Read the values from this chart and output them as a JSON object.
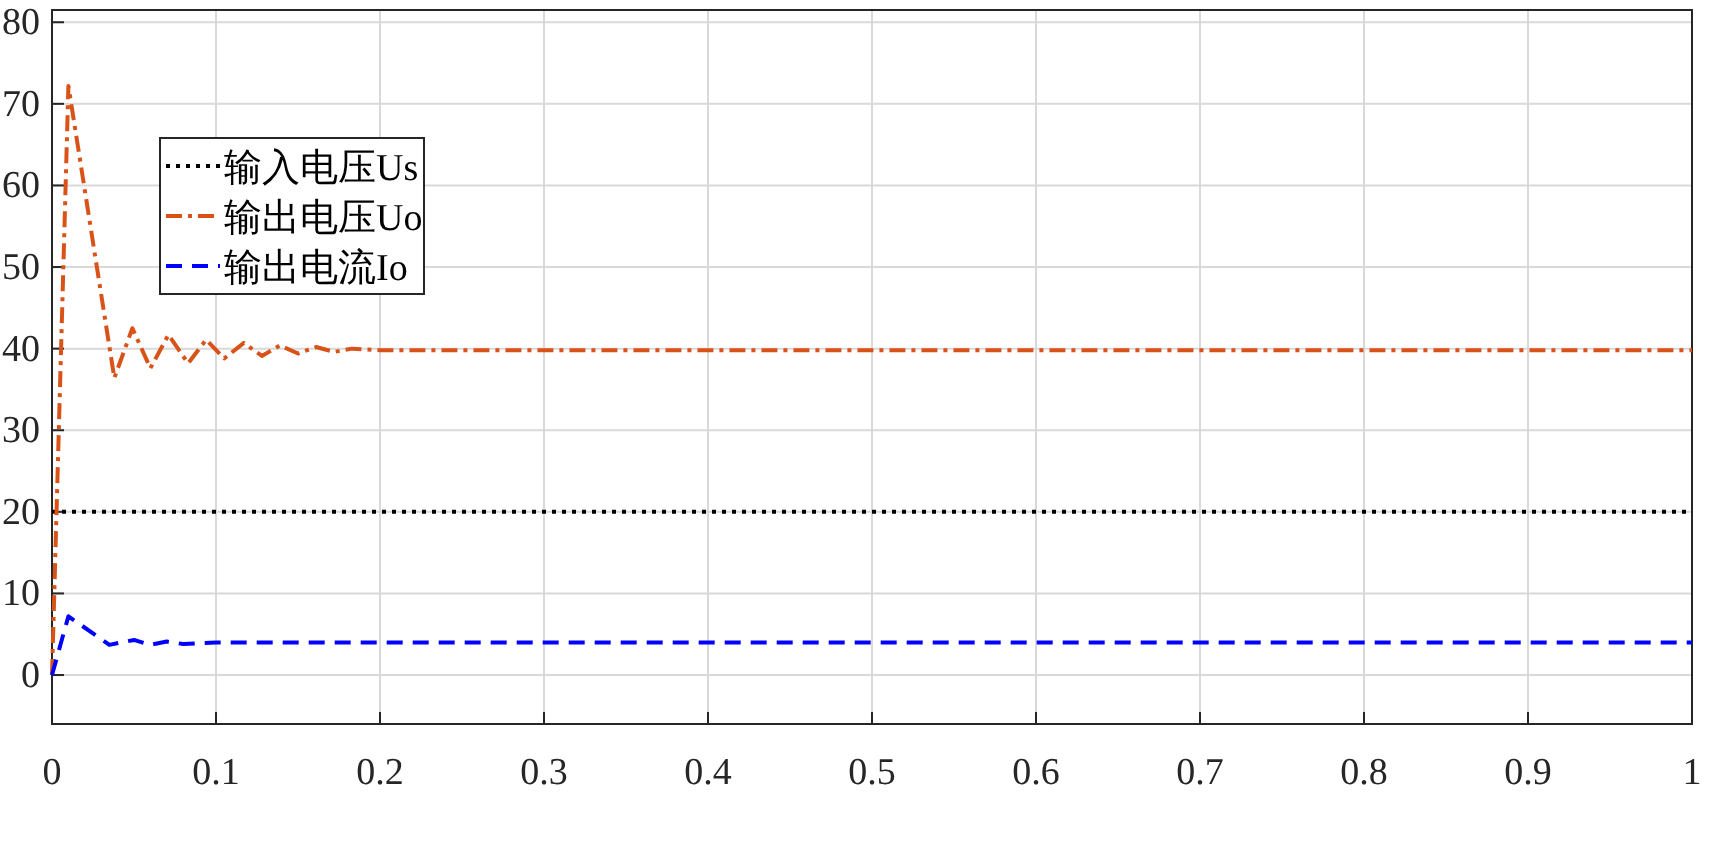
{
  "chart_data": {
    "type": "line",
    "xlim": [
      0,
      1
    ],
    "xticks": [
      0,
      0.1,
      0.2,
      0.3,
      0.4,
      0.5,
      0.6,
      0.7,
      0.8,
      0.9,
      1
    ],
    "ylim": [
      -6,
      81.5
    ],
    "yticks": [
      0,
      10,
      20,
      30,
      40,
      50,
      60,
      70,
      80
    ],
    "grid": true,
    "legend": "top left",
    "series": [
      {
        "name": "输入电压Us",
        "color": "#000000",
        "line_style": "dotted",
        "x": [
          0,
          1
        ],
        "values": [
          20,
          20
        ]
      },
      {
        "name": "输出电压Uo",
        "color": "#d95319",
        "line_style": "dashdot",
        "x": [
          0,
          0.01,
          0.038,
          0.049,
          0.06,
          0.071,
          0.083,
          0.094,
          0.105,
          0.117,
          0.128,
          0.139,
          0.15,
          0.161,
          0.172,
          0.183,
          0.2,
          0.25,
          1
        ],
        "values": [
          0,
          72.2,
          36.4,
          42.5,
          37.6,
          41.7,
          38.2,
          41.1,
          38.8,
          40.7,
          39.1,
          40.4,
          39.4,
          40.2,
          39.6,
          40.0,
          39.8,
          39.8,
          39.8
        ]
      },
      {
        "name": "输出电流Io",
        "color": "#0000ff",
        "line_style": "dashed",
        "x": [
          0,
          0.01,
          0.035,
          0.05,
          0.06,
          0.07,
          0.08,
          0.1,
          1
        ],
        "values": [
          0,
          7.2,
          3.7,
          4.3,
          3.7,
          4.1,
          3.8,
          4.0,
          4.0
        ]
      }
    ]
  }
}
